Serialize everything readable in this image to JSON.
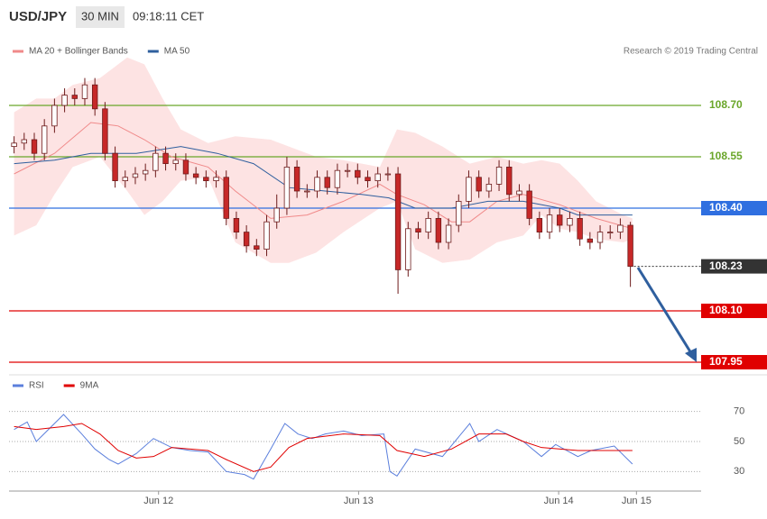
{
  "header": {
    "symbol": "USD/JPY",
    "interval": "30 MIN",
    "time": "09:18:11 CET",
    "credit": "Research © 2019 Trading Central"
  },
  "chart_data": [
    {
      "type": "candlestick",
      "candles": {
        "x": [
          0,
          1,
          2,
          3,
          4,
          5,
          6,
          7,
          8,
          9,
          10,
          11,
          12,
          13,
          14,
          15,
          16,
          17,
          18,
          19,
          20,
          21,
          22,
          23,
          24,
          25,
          26,
          27,
          28,
          29,
          30,
          31,
          32,
          33,
          34,
          35,
          36,
          37,
          38,
          39,
          40,
          41,
          42,
          43,
          44,
          45,
          46,
          47,
          48,
          49,
          50,
          51,
          52,
          53,
          54,
          55,
          56,
          57,
          58,
          59,
          60,
          61
        ],
        "open": [
          108.58,
          108.59,
          108.6,
          108.56,
          108.64,
          108.7,
          108.73,
          108.72,
          108.76,
          108.69,
          108.56,
          108.48,
          108.49,
          108.5,
          108.51,
          108.56,
          108.53,
          108.54,
          108.5,
          108.49,
          108.48,
          108.49,
          108.37,
          108.33,
          108.29,
          108.28,
          108.36,
          108.4,
          108.52,
          108.45,
          108.45,
          108.49,
          108.46,
          108.51,
          108.51,
          108.49,
          108.48,
          108.5,
          108.5,
          108.22,
          108.34,
          108.33,
          108.37,
          108.3,
          108.35,
          108.42,
          108.49,
          108.45,
          108.47,
          108.52,
          108.44,
          108.45,
          108.37,
          108.33,
          108.38,
          108.35,
          108.37,
          108.31,
          108.3,
          108.33,
          108.33,
          108.35
        ],
        "high": [
          108.61,
          108.62,
          108.62,
          108.66,
          108.72,
          108.75,
          108.75,
          108.78,
          108.78,
          108.71,
          108.58,
          108.51,
          108.52,
          108.53,
          108.58,
          108.58,
          108.56,
          108.56,
          108.52,
          108.51,
          108.51,
          108.51,
          108.39,
          108.35,
          108.31,
          108.38,
          108.44,
          108.55,
          108.54,
          108.47,
          108.51,
          108.51,
          108.53,
          108.53,
          108.53,
          108.51,
          108.52,
          108.52,
          108.52,
          108.36,
          108.36,
          108.39,
          108.39,
          108.37,
          108.44,
          108.51,
          108.51,
          108.49,
          108.54,
          108.54,
          108.47,
          108.47,
          108.39,
          108.4,
          108.4,
          108.39,
          108.39,
          108.33,
          108.35,
          108.35,
          108.37,
          108.36
        ],
        "low": [
          108.56,
          108.57,
          108.54,
          108.54,
          108.62,
          108.68,
          108.7,
          108.7,
          108.67,
          108.54,
          108.46,
          108.46,
          108.47,
          108.48,
          108.49,
          108.51,
          108.51,
          108.48,
          108.47,
          108.46,
          108.46,
          108.35,
          108.31,
          108.27,
          108.26,
          108.26,
          108.34,
          108.38,
          108.43,
          108.43,
          108.43,
          108.44,
          108.44,
          108.49,
          108.47,
          108.46,
          108.46,
          108.48,
          108.15,
          108.2,
          108.31,
          108.31,
          108.28,
          108.28,
          108.33,
          108.4,
          108.43,
          108.43,
          108.45,
          108.42,
          108.42,
          108.35,
          108.31,
          108.31,
          108.33,
          108.33,
          108.29,
          108.28,
          108.28,
          108.31,
          108.31,
          108.17
        ],
        "close": [
          108.59,
          108.6,
          108.56,
          108.64,
          108.7,
          108.73,
          108.72,
          108.76,
          108.69,
          108.56,
          108.48,
          108.49,
          108.5,
          108.51,
          108.56,
          108.53,
          108.54,
          108.5,
          108.49,
          108.48,
          108.49,
          108.37,
          108.33,
          108.29,
          108.28,
          108.36,
          108.4,
          108.52,
          108.45,
          108.45,
          108.49,
          108.46,
          108.51,
          108.51,
          108.49,
          108.48,
          108.5,
          108.5,
          108.22,
          108.34,
          108.33,
          108.37,
          108.3,
          108.35,
          108.42,
          108.49,
          108.45,
          108.47,
          108.52,
          108.44,
          108.45,
          108.37,
          108.33,
          108.38,
          108.35,
          108.37,
          108.31,
          108.3,
          108.33,
          108.33,
          108.35,
          108.23
        ],
        "up_color": "#ffffff",
        "down_color": "#c62828",
        "outline_color": "#6d1b1b"
      },
      "band": {
        "color": "#fde3e3",
        "x": [
          0,
          2.2,
          4,
          5.8,
          8.5,
          11.2,
          12.9,
          14.7,
          16.5,
          19.2,
          21.9,
          25.4,
          27.2,
          29.9,
          32.6,
          36.2,
          37.9,
          39.7,
          42.4,
          45.1,
          47.8,
          50.4,
          52.2,
          54,
          55.8,
          57.6,
          60.3,
          61.2
        ],
        "upper": [
          108.68,
          108.72,
          108.72,
          108.76,
          108.78,
          108.84,
          108.82,
          108.72,
          108.63,
          108.59,
          108.61,
          108.6,
          108.58,
          108.55,
          108.54,
          108.52,
          108.63,
          108.62,
          108.58,
          108.53,
          108.55,
          108.53,
          108.54,
          108.53,
          108.48,
          108.42,
          108.38,
          108.37
        ],
        "lower": [
          108.32,
          108.35,
          108.44,
          108.52,
          108.55,
          108.45,
          108.38,
          108.42,
          108.48,
          108.49,
          108.3,
          108.24,
          108.24,
          108.27,
          108.33,
          108.4,
          108.42,
          108.28,
          108.24,
          108.25,
          108.3,
          108.32,
          108.38,
          108.34,
          108.33,
          108.31,
          108.3,
          108.31
        ]
      },
      "series": [
        {
          "name": "MA 20 + Bollinger Bands",
          "color": "#f08a8a",
          "x": [
            0,
            4,
            7.6,
            10.3,
            12.9,
            15.6,
            19.2,
            21.9,
            25.4,
            29,
            32.6,
            36.2,
            37.9,
            40.6,
            43.3,
            45.1,
            47.8,
            50.4,
            54,
            57.6,
            61.2
          ],
          "values": [
            108.5,
            108.56,
            108.65,
            108.64,
            108.6,
            108.55,
            108.52,
            108.45,
            108.37,
            108.38,
            108.42,
            108.47,
            108.44,
            108.41,
            108.36,
            108.36,
            108.42,
            108.44,
            108.41,
            108.37,
            108.34
          ]
        },
        {
          "name": "MA 50",
          "color": "#2f5f9e",
          "x": [
            0,
            4,
            7.6,
            12.1,
            16.5,
            20.1,
            23.7,
            27.2,
            30.8,
            34.4,
            37.1,
            39.7,
            43.3,
            46.9,
            50.4,
            54,
            55.8,
            61.2
          ],
          "values": [
            108.53,
            108.54,
            108.56,
            108.56,
            108.58,
            108.56,
            108.53,
            108.46,
            108.45,
            108.44,
            108.43,
            108.4,
            108.4,
            108.42,
            108.42,
            108.4,
            108.38,
            108.38
          ]
        }
      ],
      "levels": [
        {
          "value": 108.7,
          "label": "108.70",
          "color": "#6aa62a",
          "boxed": false
        },
        {
          "value": 108.55,
          "label": "108.55",
          "color": "#6aa62a",
          "boxed": false
        },
        {
          "value": 108.4,
          "label": "108.40",
          "color": "#2f6fe0",
          "boxed": true
        },
        {
          "value": 108.23,
          "label": "108.23",
          "color": "#333333",
          "boxed": true,
          "dotted": true
        },
        {
          "value": 108.1,
          "label": "108.10",
          "color": "#e00000",
          "boxed": true
        },
        {
          "value": 107.95,
          "label": "107.95",
          "color": "#e00000",
          "boxed": true
        }
      ],
      "xlim": [
        -0.5,
        68
      ],
      "ylim": [
        107.92,
        109.0
      ]
    },
    {
      "type": "line",
      "series": [
        {
          "name": "RSI",
          "color": "#5b7fdc",
          "x": [
            0,
            1.3,
            2.2,
            4,
            4.9,
            6.7,
            8,
            9.4,
            10.3,
            12.1,
            13.8,
            15.6,
            17.4,
            19.2,
            21,
            22.8,
            23.7,
            25.4,
            26.8,
            28.1,
            29.5,
            30.8,
            32.6,
            34.4,
            36.6,
            37.2,
            37.9,
            39.7,
            42.4,
            45.1,
            46,
            47.8,
            50.4,
            52.2,
            53.6,
            55.8,
            57.1,
            59.4,
            61.2
          ],
          "values": [
            58,
            63,
            50,
            62,
            68,
            55,
            45,
            38,
            35,
            42,
            52,
            46,
            44,
            43,
            30,
            28,
            25,
            45,
            62,
            55,
            52,
            55,
            57,
            54,
            55,
            30,
            27,
            45,
            40,
            62,
            50,
            58,
            50,
            40,
            48,
            40,
            44,
            47,
            35
          ]
        },
        {
          "name": "9MA",
          "color": "#e00000",
          "x": [
            0,
            2.2,
            4.9,
            6.7,
            8.5,
            10.3,
            12.1,
            13.8,
            15.6,
            19.2,
            21,
            23.7,
            25.4,
            27.2,
            29,
            32.6,
            36.2,
            37.9,
            40.6,
            43.3,
            46,
            48.7,
            50.4,
            52.2,
            55.8,
            59.4,
            61.2
          ],
          "values": [
            60,
            58,
            60,
            62,
            55,
            44,
            39,
            40,
            46,
            44,
            38,
            30,
            33,
            46,
            52,
            55,
            54,
            44,
            40,
            45,
            55,
            55,
            50,
            46,
            44,
            44,
            44
          ]
        }
      ],
      "xlim": [
        -0.5,
        68
      ],
      "ylim": [
        20,
        80
      ],
      "yticks": [
        30,
        50,
        70
      ],
      "xticks": [
        {
          "value": 14.3,
          "label": "Jun 12"
        },
        {
          "value": 34.1,
          "label": "Jun 13"
        },
        {
          "value": 53.9,
          "label": "Jun 14"
        },
        {
          "value": 61.6,
          "label": "Jun 15"
        }
      ]
    }
  ]
}
